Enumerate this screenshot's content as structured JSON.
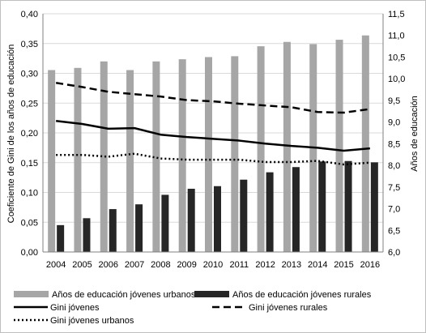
{
  "chart_data": {
    "type": "bar",
    "categories": [
      "2004",
      "2005",
      "2006",
      "2007",
      "2008",
      "2009",
      "2010",
      "2011",
      "2012",
      "2013",
      "2014",
      "2015",
      "2016"
    ],
    "y_left": {
      "label": "Coeficiente de Gini de los años de educación",
      "range": [
        0,
        0.4
      ],
      "ticks": [
        "0,00",
        "0,05",
        "0,10",
        "0,15",
        "0,20",
        "0,25",
        "0,30",
        "0,35",
        "0,40"
      ]
    },
    "y_right": {
      "label": "Años de educación",
      "range": [
        6.0,
        11.5
      ],
      "ticks": [
        "6,0",
        "6,5",
        "7,0",
        "7,5",
        "8,0",
        "8,5",
        "9,0",
        "9,5",
        "10,0",
        "10,5",
        "11,0",
        "11,5"
      ]
    },
    "series": [
      {
        "name": "Años de educación jóvenes urbanos",
        "type": "bar",
        "axis": "right",
        "color": "#a6a6a6",
        "values": [
          10.2,
          10.25,
          10.4,
          10.2,
          10.4,
          10.45,
          10.5,
          10.52,
          10.75,
          10.85,
          10.8,
          10.9,
          11.0
        ]
      },
      {
        "name": "Años de educación jóvenes rurales",
        "type": "bar",
        "axis": "right",
        "color": "#262626",
        "values": [
          6.62,
          6.78,
          6.99,
          7.1,
          7.32,
          7.46,
          7.52,
          7.67,
          7.84,
          7.96,
          8.09,
          8.1,
          8.07
        ]
      },
      {
        "name": "Gini jóvenes",
        "type": "line",
        "axis": "left",
        "style": "solid",
        "color": "#000000",
        "values": [
          0.22,
          0.215,
          0.207,
          0.208,
          0.197,
          0.193,
          0.19,
          0.187,
          0.182,
          0.178,
          0.175,
          0.17,
          0.174
        ]
      },
      {
        "name": "Gini jóvenes rurales",
        "type": "line",
        "axis": "left",
        "style": "dashed",
        "color": "#000000",
        "values": [
          0.284,
          0.277,
          0.269,
          0.265,
          0.261,
          0.255,
          0.253,
          0.249,
          0.246,
          0.243,
          0.235,
          0.234,
          0.24
        ]
      },
      {
        "name": "Gini jóvenes urbanos",
        "type": "line",
        "axis": "left",
        "style": "dotted",
        "color": "#000000",
        "values": [
          0.163,
          0.163,
          0.16,
          0.165,
          0.157,
          0.155,
          0.155,
          0.155,
          0.151,
          0.151,
          0.153,
          0.147,
          0.15
        ]
      }
    ],
    "grid": true,
    "legend_position": "bottom"
  }
}
